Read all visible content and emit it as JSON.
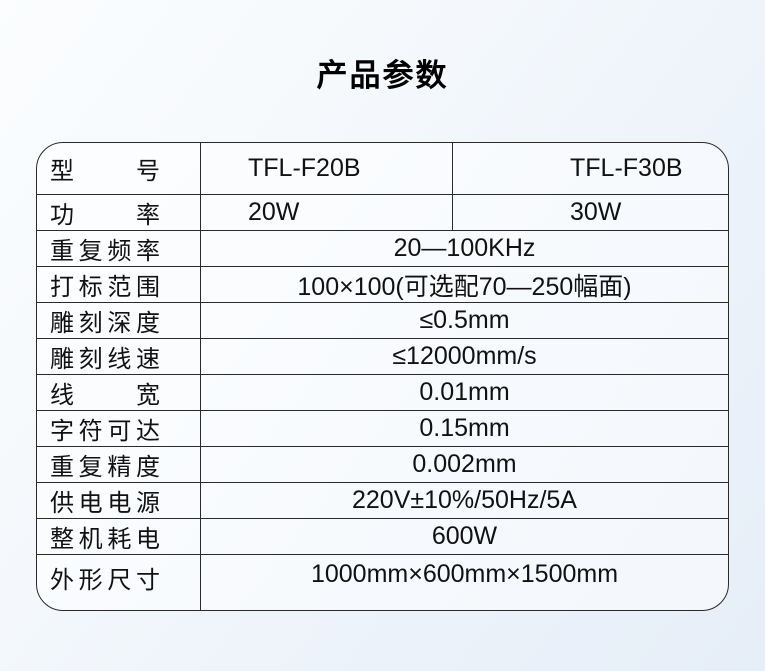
{
  "page": {
    "title": "产品参数"
  },
  "colors": {
    "border": "#2a2a2a",
    "text": "#111111",
    "background_start": "#fbfdfe",
    "background_end": "#e6eef8",
    "table_fill": "#fdfefe"
  },
  "table": {
    "columns_rows": [
      {
        "label": "型号",
        "values": [
          "TFL-F20B",
          "TFL-F30B"
        ]
      },
      {
        "label": "功率",
        "values": [
          "20W",
          "30W"
        ]
      }
    ],
    "merged_rows": [
      {
        "label": "重复频率",
        "value": "20—100KHz"
      },
      {
        "label": "打标范围",
        "value": "100×100(可选配70—250幅面)"
      },
      {
        "label": "雕刻深度",
        "value": "≤0.5mm"
      },
      {
        "label": "雕刻线速",
        "value": "≤12000mm/s"
      },
      {
        "label": "线宽",
        "value": "0.01mm"
      },
      {
        "label": "字符可达",
        "value": "0.15mm"
      },
      {
        "label": "重复精度",
        "value": "0.002mm"
      },
      {
        "label": "供电电源",
        "value": "220V±10%/50Hz/5A"
      },
      {
        "label": "整机耗电",
        "value": "600W"
      },
      {
        "label": "外形尺寸",
        "value": "1000mm×600mm×1500mm"
      }
    ]
  }
}
